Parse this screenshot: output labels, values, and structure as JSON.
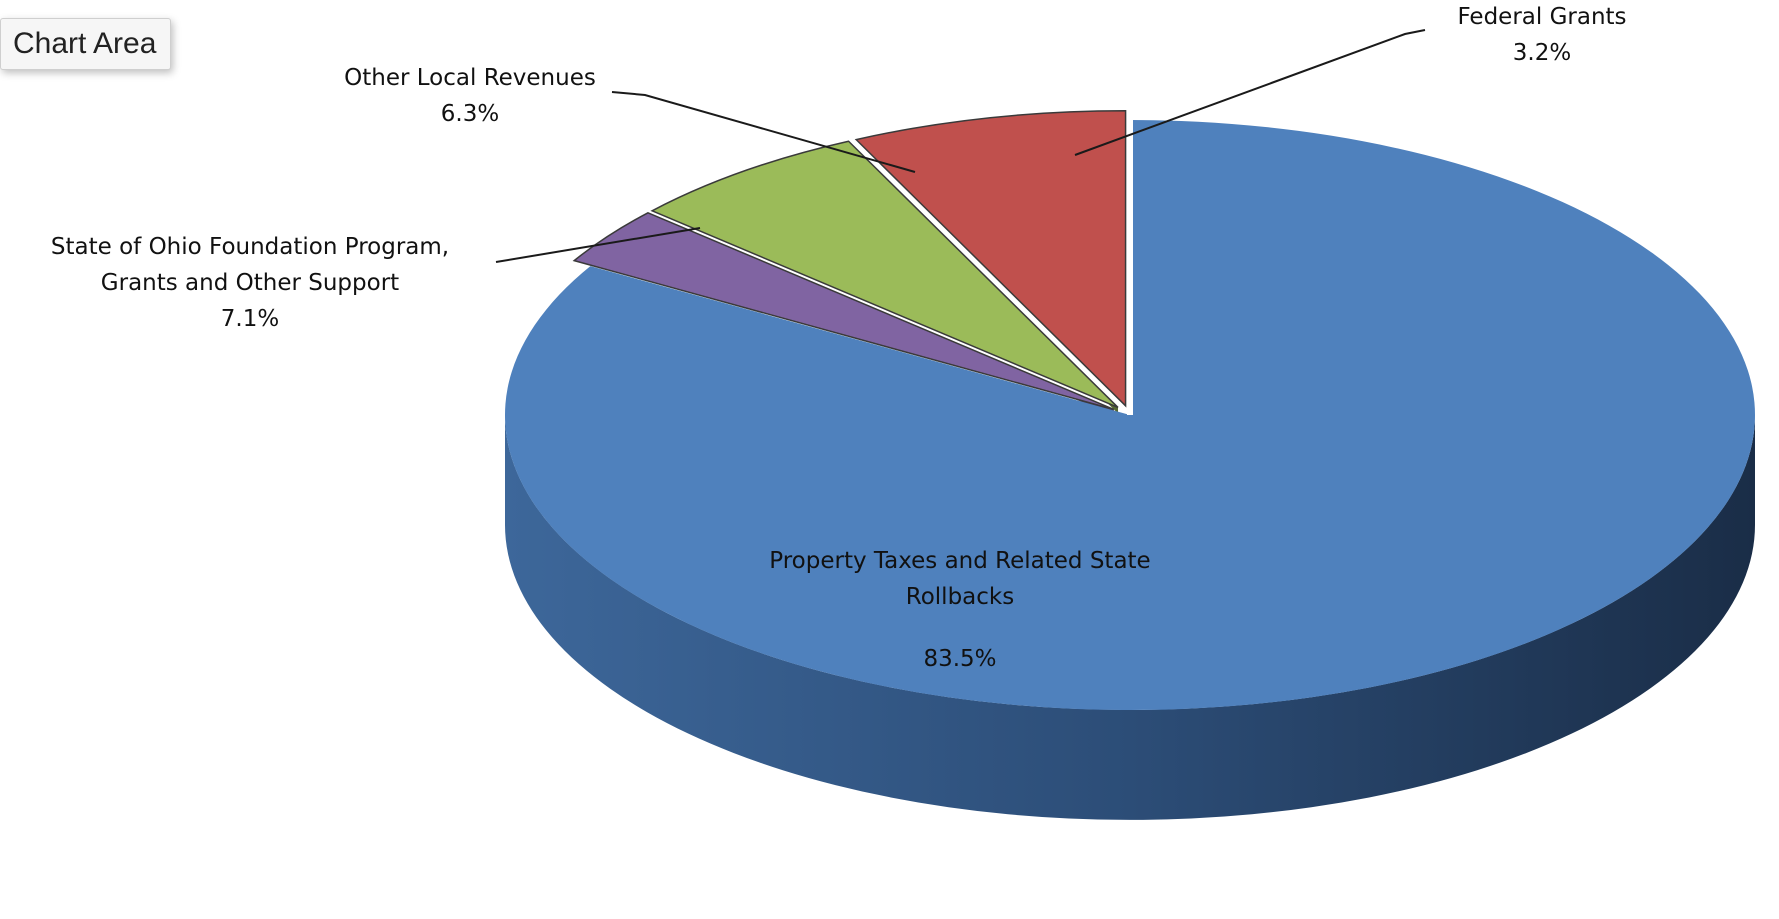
{
  "tooltip": {
    "text": "Chart Area"
  },
  "chart_data": {
    "type": "pie",
    "style": "3d-exploded",
    "slices": [
      {
        "label": "Property Taxes and Related State Rollbacks",
        "label_lines": [
          "Property Taxes and Related State",
          "Rollbacks"
        ],
        "value": 83.5,
        "value_text": "83.5%",
        "color": "#4f81bd"
      },
      {
        "label": "State of Ohio Foundation Program, Grants and Other Support",
        "label_lines": [
          "State of Ohio Foundation Program,",
          "Grants and Other Support"
        ],
        "value": 7.1,
        "value_text": "7.1%",
        "color": "#c0504d"
      },
      {
        "label": "Other Local Revenues",
        "label_lines": [
          "Other Local Revenues"
        ],
        "value": 6.3,
        "value_text": "6.3%",
        "color": "#9bbb59"
      },
      {
        "label": "Federal Grants",
        "label_lines": [
          "Federal Grants"
        ],
        "value": 3.2,
        "value_text": "3.2%",
        "color": "#8064a2"
      }
    ]
  }
}
